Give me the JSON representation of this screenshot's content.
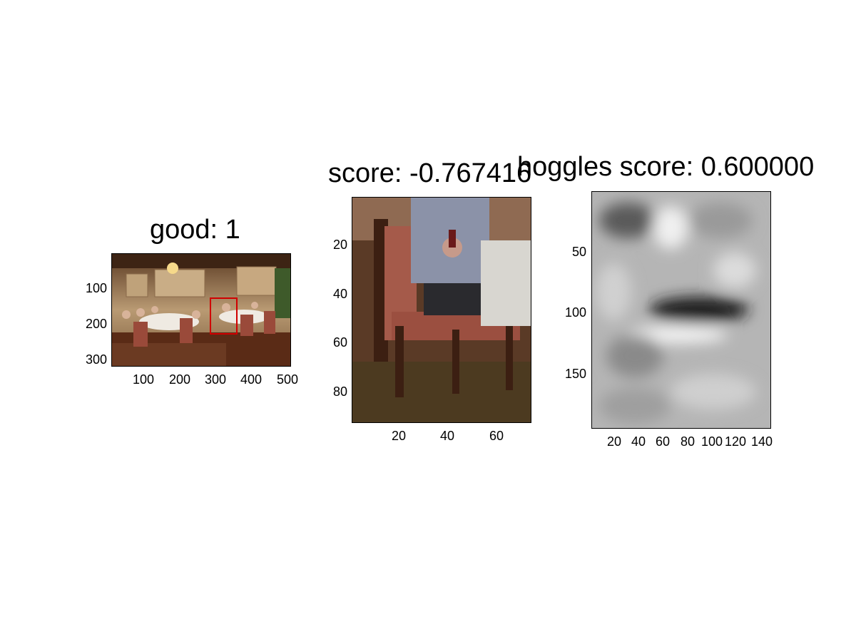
{
  "panels": [
    {
      "id": "panel-1",
      "title": "good: 1",
      "xticks": [
        "100",
        "200",
        "300",
        "400",
        "500"
      ],
      "yticks": [
        "100",
        "200",
        "300"
      ],
      "image_content": "dining room group photo",
      "highlight_box_color": "#d00000"
    },
    {
      "id": "panel-2",
      "title": "score: -0.767416",
      "xticks": [
        "20",
        "40",
        "60"
      ],
      "yticks": [
        "20",
        "40",
        "60",
        "80"
      ],
      "image_content": "cropped patch: seated man on chair"
    },
    {
      "id": "panel-3",
      "title": "hoggles score: 0.600000",
      "xticks": [
        "20",
        "40",
        "60",
        "80",
        "100",
        "120",
        "140"
      ],
      "yticks": [
        "50",
        "100",
        "150"
      ],
      "image_content": "grayscale HOG inversion"
    }
  ],
  "chart_data": [
    {
      "type": "heatmap",
      "title": "good: 1",
      "xlim": [
        0,
        500
      ],
      "ylim": [
        0,
        315
      ],
      "xticks": [
        100,
        200,
        300,
        400,
        500
      ],
      "yticks": [
        100,
        200,
        300
      ]
    },
    {
      "type": "heatmap",
      "title": "score: -0.767416",
      "xlim": [
        0,
        73
      ],
      "ylim": [
        0,
        92
      ],
      "xticks": [
        20,
        40,
        60
      ],
      "yticks": [
        20,
        40,
        60,
        80
      ]
    },
    {
      "type": "heatmap",
      "title": "hoggles score: 0.600000",
      "xlim": [
        0,
        146
      ],
      "ylim": [
        0,
        190
      ],
      "xticks": [
        20,
        40,
        60,
        80,
        100,
        120,
        140
      ],
      "yticks": [
        50,
        100,
        150
      ]
    }
  ]
}
